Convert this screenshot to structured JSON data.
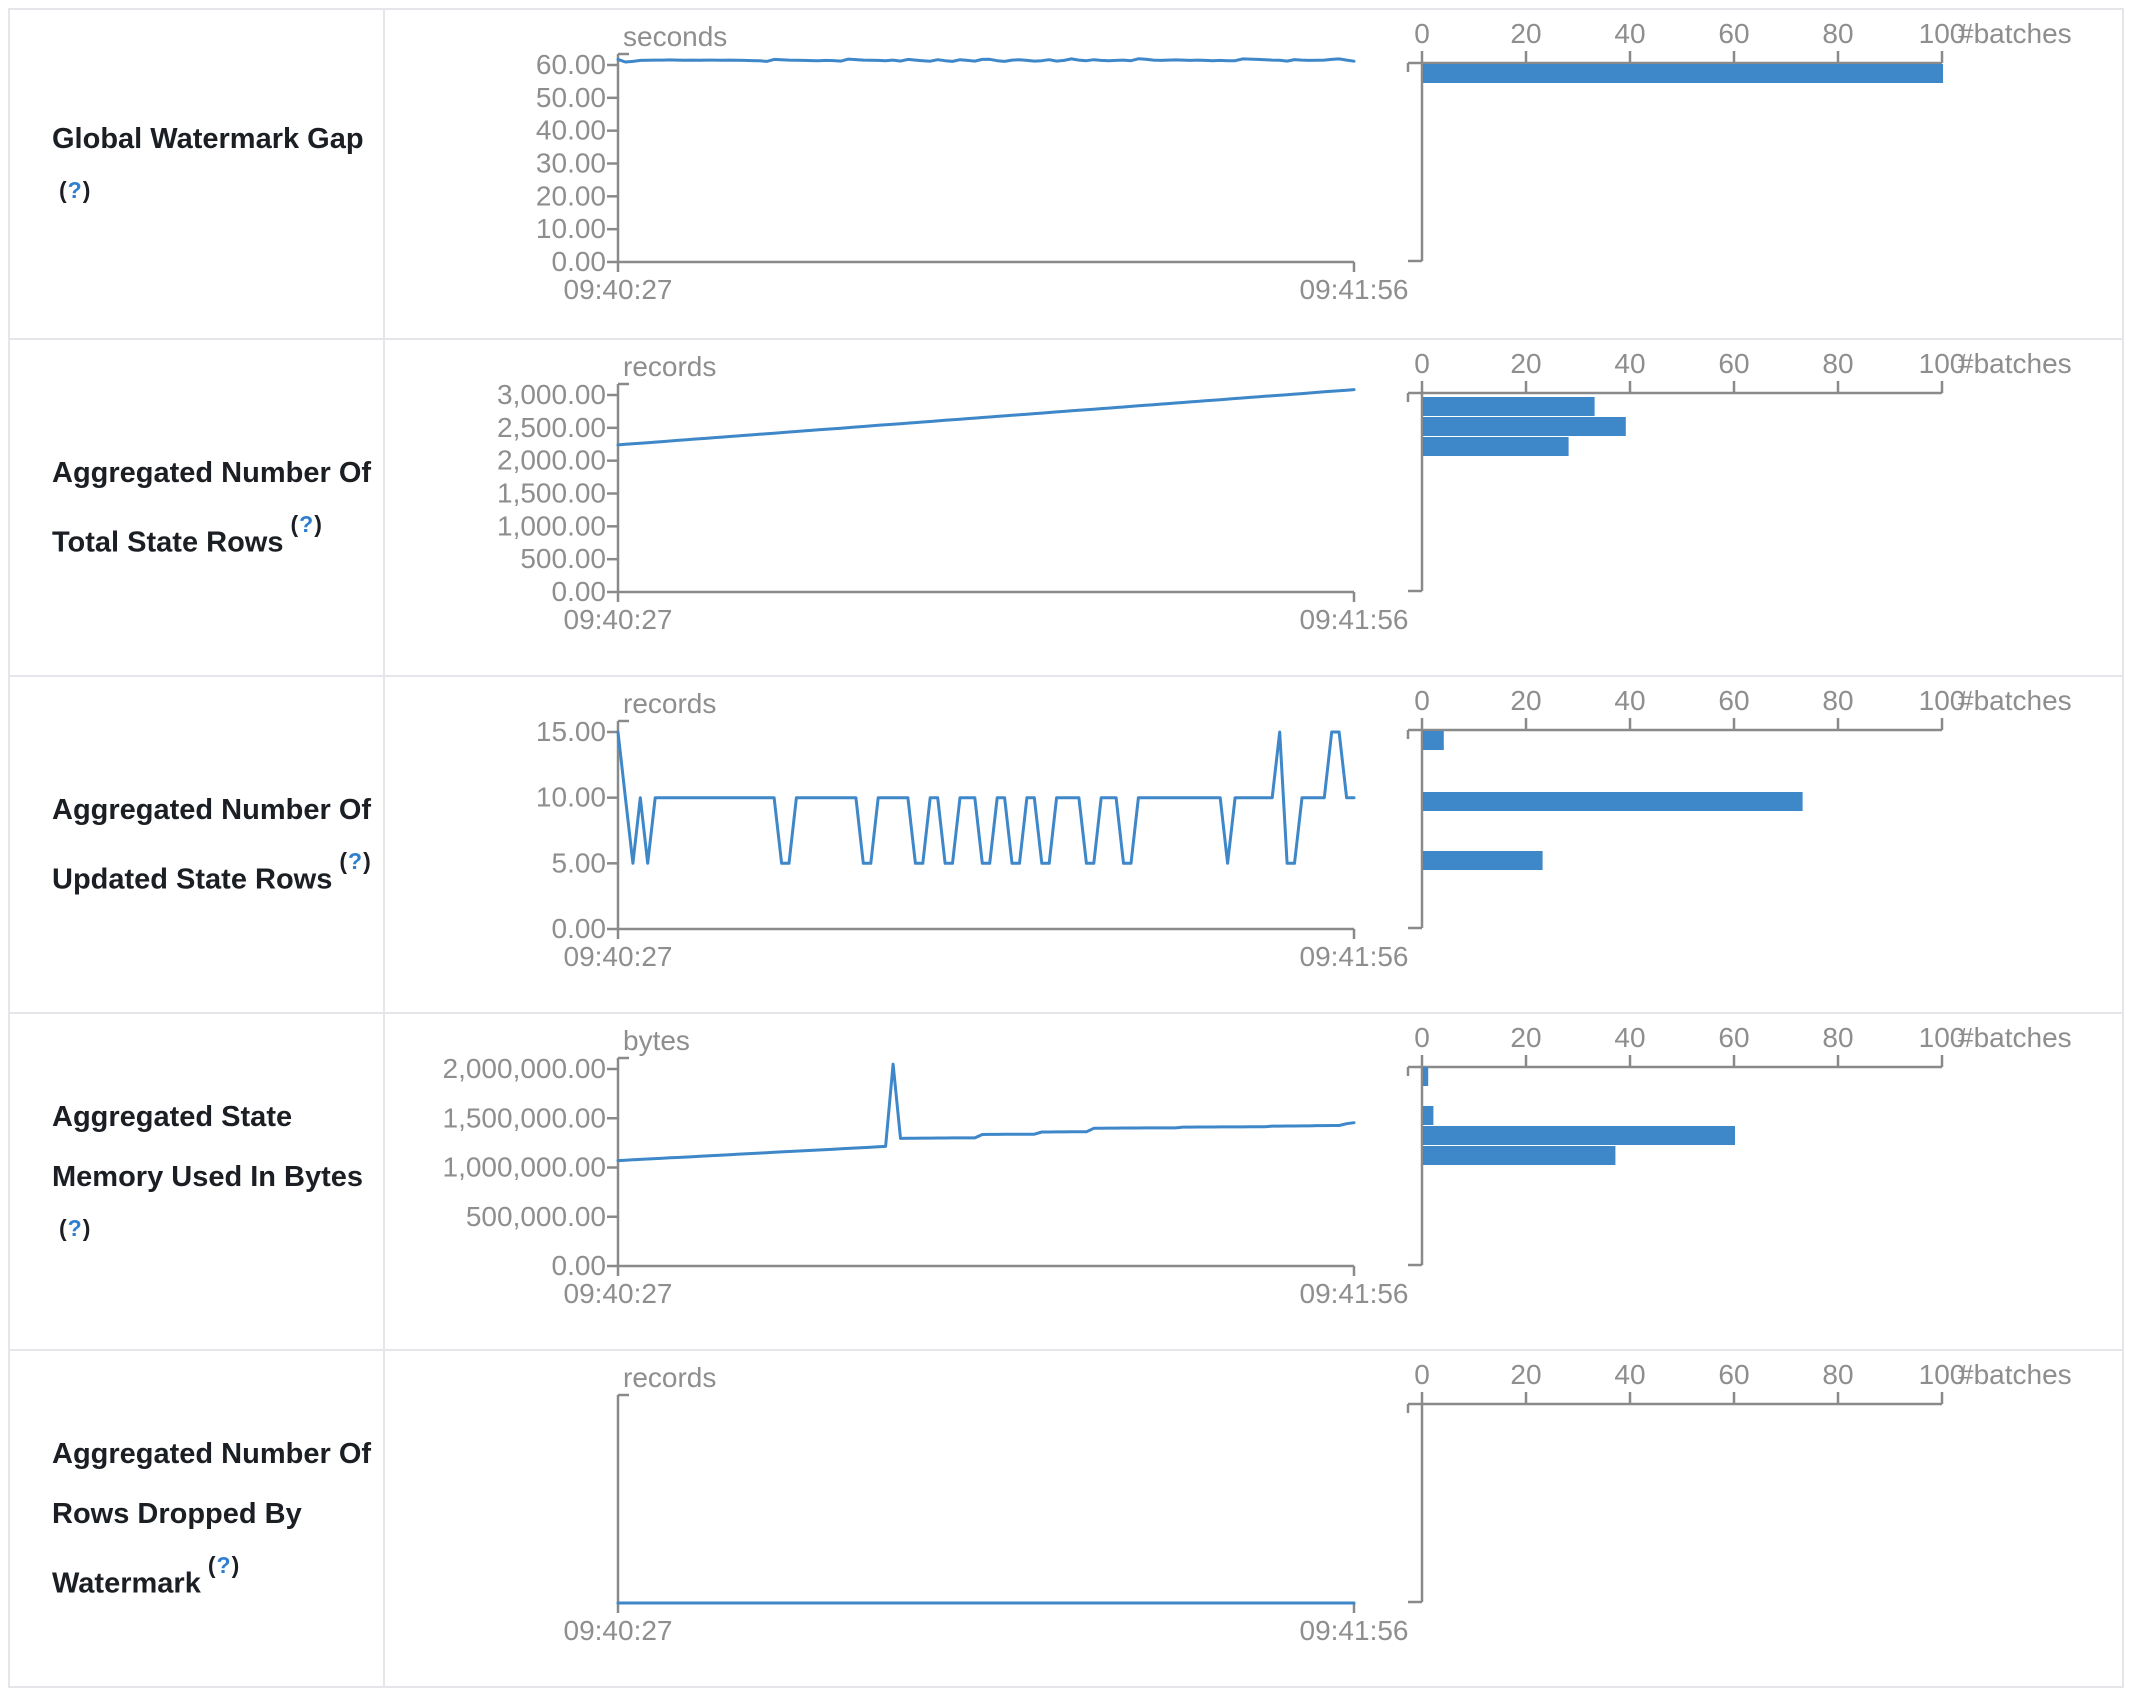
{
  "colors": {
    "series_blue": "#3e87c9",
    "axis_gray": "#8a8a8a",
    "chart_text_gray": "#8e8e8e",
    "label_text": "#1b1f24",
    "help_link_blue": "#2f7fd1",
    "border_gray": "#e4e6e9"
  },
  "rows": [
    {
      "label_lines": [
        "Global Watermark Gap",
        ""
      ],
      "help_label": "(?)",
      "chart_data": {
        "type": "line",
        "unit": "seconds",
        "x_axis_labels": [
          "09:40:27",
          "09:41:56"
        ],
        "ylim": [
          0,
          60
        ],
        "yticks": [
          {
            "value": 60,
            "label": "60.00"
          },
          {
            "value": 50,
            "label": "50.00"
          },
          {
            "value": 40,
            "label": "40.00"
          },
          {
            "value": 30,
            "label": "30.00"
          },
          {
            "value": 20,
            "label": "20.00"
          },
          {
            "value": 10,
            "label": "10.00"
          },
          {
            "value": 0,
            "label": "0.00"
          }
        ],
        "values": [
          61.7,
          60.9,
          61.1,
          61.4,
          61.45,
          61.5,
          61.5,
          61.55,
          61.5,
          61.45,
          61.5,
          61.45,
          61.5,
          61.5,
          61.45,
          61.5,
          61.45,
          61.4,
          61.35,
          61.3,
          61.1,
          61.7,
          61.6,
          61.5,
          61.45,
          61.4,
          61.35,
          61.3,
          61.4,
          61.35,
          61.2,
          61.8,
          61.65,
          61.5,
          61.45,
          61.4,
          61.3,
          61.5,
          61.2,
          61.7,
          61.5,
          61.3,
          61.15,
          61.6,
          61.3,
          61.1,
          61.6,
          61.4,
          61.2,
          61.7,
          61.75,
          61.3,
          61.1,
          61.5,
          61.6,
          61.4,
          61.2,
          61.3,
          61.6,
          61.2,
          61.4,
          61.85,
          61.5,
          61.3,
          61.6,
          61.4,
          61.3,
          61.4,
          61.5,
          61.3,
          61.9,
          61.75,
          61.5,
          61.4,
          61.5,
          61.55,
          61.5,
          61.4,
          61.5,
          61.4,
          61.3,
          61.4,
          61.3,
          61.3,
          61.85,
          61.8,
          61.7,
          61.6,
          61.5,
          61.45,
          61.2,
          61.65,
          61.5,
          61.4,
          61.45,
          61.5,
          61.7,
          61.85,
          61.5,
          61.15
        ]
      },
      "histogram_data": {
        "type": "bar",
        "axis_label": "#batches",
        "xlim": [
          0,
          100
        ],
        "xticks": [
          "0",
          "20",
          "40",
          "60",
          "80",
          "100"
        ],
        "bars": [
          {
            "count": 100,
            "approx_value": 57,
            "y_top": 54
          }
        ]
      }
    },
    {
      "label_lines": [
        "Aggregated Number Of",
        "Total State Rows"
      ],
      "help_label": "(?)",
      "chart_data": {
        "type": "line",
        "unit": "records",
        "x_axis_labels": [
          "09:40:27",
          "09:41:56"
        ],
        "ylim": [
          0,
          3000
        ],
        "yticks": [
          {
            "value": 3000,
            "label": "3,000.00"
          },
          {
            "value": 2500,
            "label": "2,500.00"
          },
          {
            "value": 2000,
            "label": "2,000.00"
          },
          {
            "value": 1500,
            "label": "1,500.00"
          },
          {
            "value": 1000,
            "label": "1,000.00"
          },
          {
            "value": 500,
            "label": "500.00"
          },
          {
            "value": 0,
            "label": "0.00"
          }
        ],
        "values": [
          2240,
          2249,
          2257,
          2266,
          2274,
          2283,
          2291,
          2300,
          2308,
          2317,
          2325,
          2334,
          2342,
          2351,
          2359,
          2368,
          2376,
          2385,
          2393,
          2402,
          2410,
          2419,
          2427,
          2436,
          2444,
          2453,
          2461,
          2470,
          2478,
          2487,
          2495,
          2504,
          2512,
          2521,
          2529,
          2538,
          2546,
          2555,
          2563,
          2572,
          2580,
          2589,
          2597,
          2606,
          2614,
          2623,
          2631,
          2640,
          2648,
          2657,
          2665,
          2674,
          2682,
          2691,
          2699,
          2708,
          2716,
          2725,
          2733,
          2742,
          2750,
          2759,
          2767,
          2776,
          2784,
          2793,
          2801,
          2810,
          2818,
          2827,
          2835,
          2844,
          2852,
          2861,
          2869,
          2878,
          2886,
          2895,
          2903,
          2912,
          2920,
          2929,
          2937,
          2946,
          2954,
          2963,
          2971,
          2980,
          2988,
          2997,
          3005,
          3014,
          3022,
          3031,
          3039,
          3048,
          3056,
          3065,
          3073,
          3082
        ]
      },
      "histogram_data": {
        "type": "bar",
        "axis_label": "#batches",
        "xlim": [
          0,
          100
        ],
        "xticks": [
          "0",
          "20",
          "40",
          "60",
          "80",
          "100"
        ],
        "bars": [
          {
            "count": 33,
            "approx_value": 2820,
            "y_top": 57
          },
          {
            "count": 39,
            "approx_value": 2520,
            "y_top": 77
          },
          {
            "count": 28,
            "approx_value": 2215,
            "y_top": 97
          }
        ]
      }
    },
    {
      "label_lines": [
        "Aggregated Number Of",
        "Updated State Rows"
      ],
      "help_label": "(?)",
      "chart_data": {
        "type": "line",
        "unit": "records",
        "x_axis_labels": [
          "09:40:27",
          "09:41:56"
        ],
        "ylim": [
          0,
          15
        ],
        "yticks": [
          {
            "value": 15,
            "label": "15.00"
          },
          {
            "value": 10,
            "label": "10.00"
          },
          {
            "value": 5,
            "label": "5.00"
          },
          {
            "value": 0,
            "label": "0.00"
          }
        ],
        "values": [
          15,
          10,
          5,
          10,
          5,
          10,
          10,
          10,
          10,
          10,
          10,
          10,
          10,
          10,
          10,
          10,
          10,
          10,
          10,
          10,
          10,
          10,
          5,
          5,
          10,
          10,
          10,
          10,
          10,
          10,
          10,
          10,
          10,
          5,
          5,
          10,
          10,
          10,
          10,
          10,
          5,
          5,
          10,
          10,
          5,
          5,
          10,
          10,
          10,
          5,
          5,
          10,
          10,
          5,
          5,
          10,
          10,
          5,
          5,
          10,
          10,
          10,
          10,
          5,
          5,
          10,
          10,
          10,
          5,
          5,
          10,
          10,
          10,
          10,
          10,
          10,
          10,
          10,
          10,
          10,
          10,
          10,
          5,
          10,
          10,
          10,
          10,
          10,
          10,
          15,
          5,
          5,
          10,
          10,
          10,
          10,
          15,
          15,
          10,
          10
        ]
      },
      "histogram_data": {
        "type": "bar",
        "axis_label": "#batches",
        "xlim": [
          0,
          100
        ],
        "xticks": [
          "0",
          "20",
          "40",
          "60",
          "80",
          "100"
        ],
        "bars": [
          {
            "count": 4,
            "approx_value": 15,
            "y_top": 54
          },
          {
            "count": 73,
            "approx_value": 10,
            "y_top": 115
          },
          {
            "count": 23,
            "approx_value": 5,
            "y_top": 174
          }
        ]
      }
    },
    {
      "label_lines": [
        "Aggregated State",
        "Memory Used In Bytes",
        ""
      ],
      "help_label": "(?)",
      "chart_data": {
        "type": "line",
        "unit": "bytes",
        "x_axis_labels": [
          "09:40:27",
          "09:41:56"
        ],
        "ylim": [
          0,
          2000000
        ],
        "yticks": [
          {
            "value": 2000000,
            "label": "2,000,000.00"
          },
          {
            "value": 1500000,
            "label": "1,500,000.00"
          },
          {
            "value": 1000000,
            "label": "1,000,000.00"
          },
          {
            "value": 500000,
            "label": "500,000.00"
          },
          {
            "value": 0,
            "label": "0.00"
          }
        ],
        "values": [
          1070000,
          1074000,
          1078000,
          1082000,
          1086000,
          1090000,
          1094000,
          1098000,
          1102000,
          1106000,
          1110000,
          1114000,
          1118000,
          1122000,
          1126000,
          1130000,
          1134000,
          1138000,
          1142000,
          1146000,
          1150000,
          1154000,
          1158000,
          1162000,
          1166000,
          1170000,
          1174000,
          1178000,
          1182000,
          1186000,
          1190000,
          1194000,
          1198000,
          1202000,
          1206000,
          1210000,
          1214000,
          2050000,
          1295000,
          1296000,
          1297000,
          1298000,
          1298000,
          1299000,
          1299000,
          1300000,
          1300000,
          1300000,
          1301000,
          1335000,
          1336000,
          1336000,
          1337000,
          1337000,
          1338000,
          1338000,
          1338000,
          1360000,
          1360000,
          1361000,
          1361000,
          1362000,
          1362000,
          1362000,
          1398000,
          1399000,
          1400000,
          1400000,
          1401000,
          1401000,
          1401000,
          1402000,
          1402000,
          1402000,
          1402000,
          1402000,
          1410000,
          1410000,
          1411000,
          1411000,
          1411000,
          1412000,
          1412000,
          1412000,
          1412000,
          1413000,
          1413000,
          1413000,
          1420000,
          1420000,
          1421000,
          1421000,
          1422000,
          1422000,
          1425000,
          1425000,
          1426000,
          1426000,
          1445000,
          1455000
        ]
      },
      "histogram_data": {
        "type": "bar",
        "axis_label": "#batches",
        "xlim": [
          0,
          100
        ],
        "xticks": [
          "0",
          "20",
          "40",
          "60",
          "80",
          "100"
        ],
        "bars": [
          {
            "count": 1,
            "approx_value": 1920000,
            "y_top": 53
          },
          {
            "count": 2,
            "approx_value": 1530000,
            "y_top": 92
          },
          {
            "count": 60,
            "approx_value": 1320000,
            "y_top": 112
          },
          {
            "count": 37,
            "approx_value": 1120000,
            "y_top": 132
          }
        ]
      }
    },
    {
      "label_lines": [
        "Aggregated Number Of",
        "Rows Dropped By",
        "Watermark"
      ],
      "help_label": "(?)",
      "chart_data": {
        "type": "line",
        "unit": "records",
        "x_axis_labels": [
          "09:40:27",
          "09:41:56"
        ],
        "ylim": [
          0,
          1
        ],
        "yticks": [],
        "values": [
          0,
          0,
          0,
          0,
          0,
          0,
          0,
          0,
          0,
          0,
          0,
          0,
          0,
          0,
          0,
          0,
          0,
          0,
          0,
          0,
          0,
          0,
          0,
          0,
          0,
          0,
          0,
          0,
          0,
          0,
          0,
          0,
          0,
          0,
          0,
          0,
          0,
          0,
          0,
          0,
          0,
          0,
          0,
          0,
          0,
          0,
          0,
          0,
          0,
          0,
          0,
          0,
          0,
          0,
          0,
          0,
          0,
          0,
          0,
          0,
          0,
          0,
          0,
          0,
          0,
          0,
          0,
          0,
          0,
          0,
          0,
          0,
          0,
          0,
          0,
          0,
          0,
          0,
          0,
          0,
          0,
          0,
          0,
          0,
          0,
          0,
          0,
          0,
          0,
          0,
          0,
          0,
          0,
          0,
          0,
          0,
          0,
          0,
          0,
          0
        ]
      },
      "histogram_data": {
        "type": "bar",
        "axis_label": "#batches",
        "xlim": [
          0,
          100
        ],
        "xticks": [
          "0",
          "20",
          "40",
          "60",
          "80",
          "100"
        ],
        "bars": []
      }
    }
  ]
}
